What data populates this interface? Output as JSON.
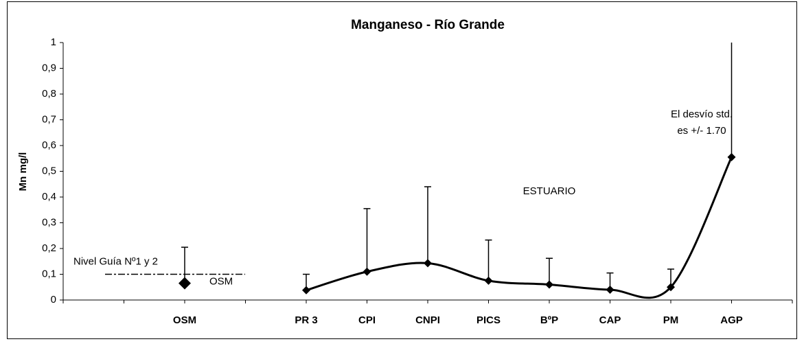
{
  "chart_data": {
    "type": "line",
    "title": "Manganeso - Río Grande",
    "y_label": "Mn  mg/l",
    "categories": [
      null,
      null,
      "OSM",
      null,
      "PR 3",
      "CPI",
      "CNPI",
      "PICS",
      "BºP",
      "CAP",
      "PM",
      "AGP",
      null
    ],
    "series": [
      {
        "name": "OSM",
        "color": "#000000",
        "marker": "diamond",
        "line": false,
        "values": [
          null,
          null,
          0.065,
          null,
          null,
          null,
          null,
          null,
          null,
          null,
          null,
          null,
          null
        ],
        "errors": [
          null,
          null,
          0.14,
          null,
          null,
          null,
          null,
          null,
          null,
          null,
          null,
          null,
          null
        ]
      },
      {
        "color": "#000000",
        "marker": "diamond",
        "line": true,
        "smooth": true,
        "values": [
          null,
          null,
          null,
          null,
          0.038,
          0.11,
          0.143,
          0.075,
          0.06,
          0.04,
          0.05,
          0.555,
          null
        ],
        "errors": [
          null,
          null,
          null,
          null,
          0.062,
          0.245,
          0.297,
          0.158,
          0.102,
          0.065,
          0.07,
          1.7,
          null
        ]
      }
    ],
    "guide_line": {
      "label": "Nivel Guía Nº1 y 2",
      "value": 0.1
    },
    "annotations": [
      "ESTUARIO",
      "El desvío std.",
      "es +/- 1.70"
    ],
    "ylim": [
      0,
      1
    ],
    "yticks": [
      0,
      {
        "value": 0.1,
        "label": "0,1"
      },
      {
        "value": 0.2,
        "label": "0,2"
      },
      {
        "value": 0.3,
        "label": "0,3"
      },
      {
        "value": 0.4,
        "label": "0,4"
      },
      {
        "value": 0.5,
        "label": "0,5"
      },
      {
        "value": 0.6,
        "label": "0,6"
      },
      {
        "value": 0.7,
        "label": "0,7"
      },
      {
        "value": 0.8,
        "label": "0,8"
      },
      {
        "value": 0.9,
        "label": "0,9"
      },
      1
    ],
    "grid": false
  }
}
